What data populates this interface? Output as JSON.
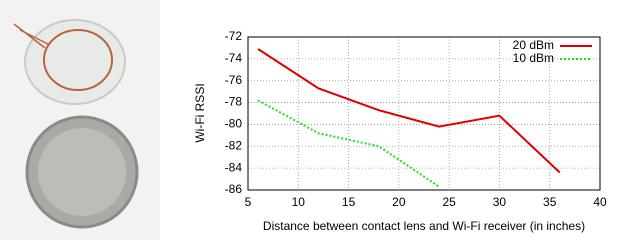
{
  "chart_data": {
    "type": "line",
    "xlabel": "Distance between contact lens and Wi-Fi receiver (in inches)",
    "ylabel": "Wi-Fi RSSI",
    "x": [
      6,
      12,
      18,
      24,
      30,
      36
    ],
    "series": [
      {
        "name": "20 dBm",
        "color": "#e00000",
        "linestyle": "solid",
        "values": [
          -73.1,
          -76.7,
          -78.7,
          -80.2,
          -79.2,
          -84.4
        ]
      },
      {
        "name": "10 dBm",
        "color": "#22dd22",
        "linestyle": "dotted",
        "values": [
          -77.8,
          -80.8,
          -82.0,
          -85.7,
          null,
          null
        ]
      }
    ],
    "xlim": [
      5,
      40
    ],
    "xticks": [
      5,
      10,
      15,
      20,
      25,
      30,
      35,
      40
    ],
    "ylim": [
      -86,
      -72
    ],
    "yticks": [
      -86,
      -84,
      -82,
      -80,
      -78,
      -76,
      -74,
      -72
    ],
    "grid": true,
    "legend": "upper right"
  }
}
